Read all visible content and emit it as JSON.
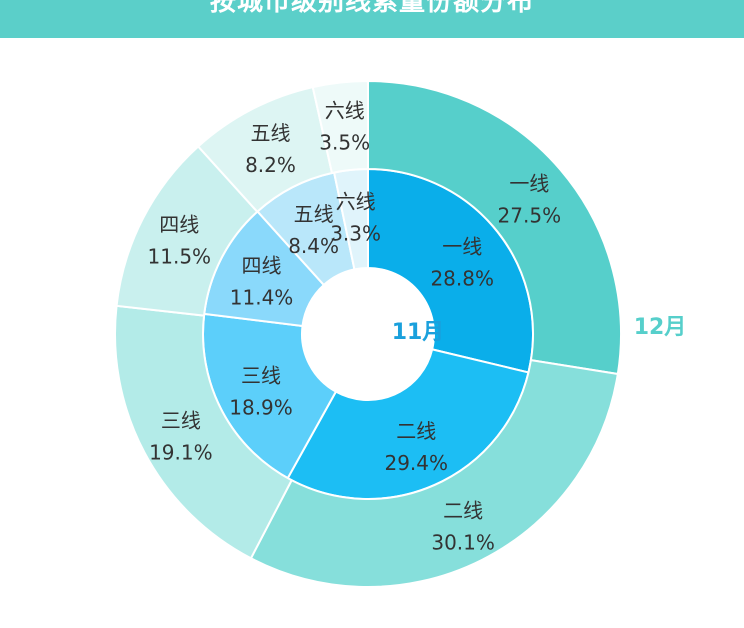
{
  "header": {
    "title": "按城市级别线索量份额分布"
  },
  "chart_data": {
    "type": "pie",
    "subtype": "nested-donut",
    "title": "按城市级别线索量份额分布",
    "categories": [
      "一线",
      "二线",
      "三线",
      "四线",
      "五线",
      "六线"
    ],
    "series": [
      {
        "name": "11月",
        "ring": "inner",
        "values": [
          28.8,
          29.4,
          18.9,
          11.4,
          8.4,
          3.3
        ],
        "colors": [
          "#0aaeea",
          "#1cbef4",
          "#5ccffa",
          "#8ad9fb",
          "#b9e7fa",
          "#e0f4fb"
        ],
        "title_color": "#1aa0dc"
      },
      {
        "name": "12月",
        "ring": "outer",
        "values": [
          27.5,
          30.1,
          19.1,
          11.5,
          8.2,
          3.5
        ],
        "colors": [
          "#56cfcb",
          "#86dfdb",
          "#b3ebe8",
          "#c9f0ee",
          "#ddf5f3",
          "#eefaf9"
        ],
        "title_color": "#56cfcb"
      }
    ],
    "label_suffix": "%",
    "start_angle": "12 o'clock",
    "direction": "clockwise"
  }
}
